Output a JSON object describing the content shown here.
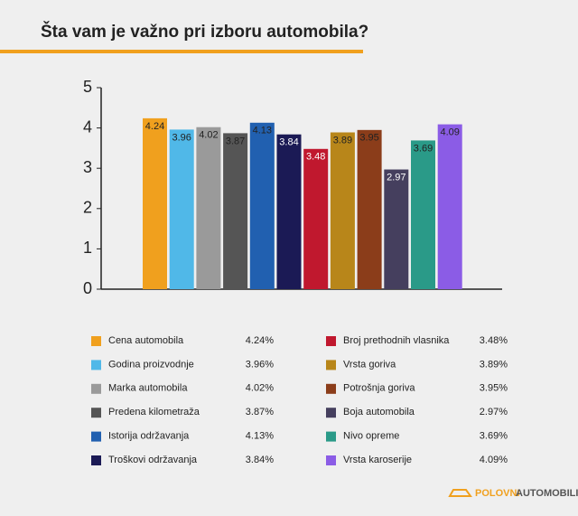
{
  "chart_data": {
    "type": "bar",
    "title": "Šta vam je važno pri izboru automobila?",
    "categories": [
      "Cena automobila",
      "Godina proizvodnje",
      "Marka automobila",
      "Predena kilometraža",
      "Istorija održavanja",
      "Troškovi održavanja",
      "Broj prethodnih vlasnika",
      "Vrsta goriva",
      "Potrošnja goriva",
      "Boja automobila",
      "Nivo opreme",
      "Vrsta karoserije"
    ],
    "values": [
      4.24,
      3.96,
      4.02,
      3.87,
      4.13,
      3.84,
      3.48,
      3.89,
      3.95,
      2.97,
      3.69,
      4.09
    ],
    "value_labels": [
      "4.24%",
      "3.96%",
      "4.02%",
      "3.87%",
      "4.13%",
      "3.84%",
      "3.48%",
      "3.89%",
      "3.95%",
      "2.97%",
      "3.69%",
      "4.09%"
    ],
    "colors": [
      "#f0a01e",
      "#50b8e8",
      "#9a9a9a",
      "#555555",
      "#2160b0",
      "#1b1a55",
      "#c0182e",
      "#b8861a",
      "#8b3d1a",
      "#453f5e",
      "#2a9a88",
      "#8b5ce6"
    ],
    "ylim": [
      0,
      5
    ],
    "yticks": [
      0,
      1,
      2,
      3,
      4,
      5
    ],
    "grid": false
  },
  "footer": {
    "logo_left": "POLOVNI",
    "logo_right": "AUTOMOBILI"
  }
}
